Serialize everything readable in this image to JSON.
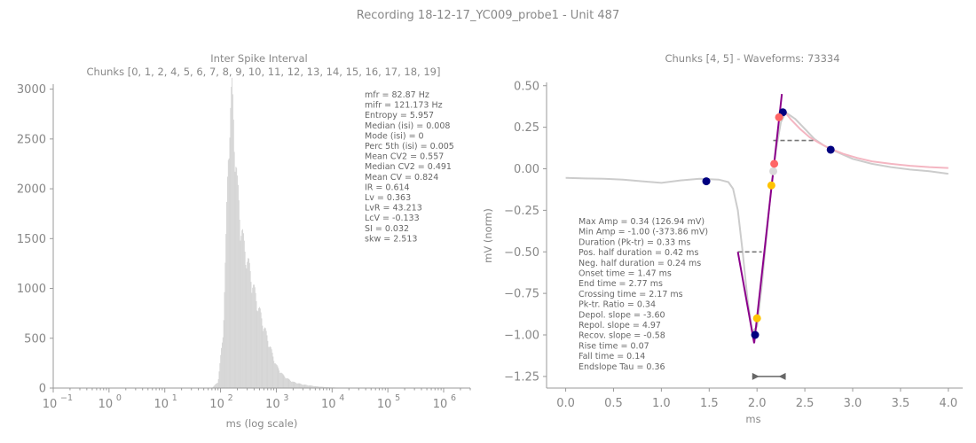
{
  "suptitle": "Recording 18-12-17_YC009_probe1 - Unit 487",
  "chart_data": [
    {
      "type": "bar",
      "title": "Inter Spike Interval",
      "subtitle": "Chunks [0, 1, 2, 4, 5, 6, 7, 8, 9, 10, 11, 12, 13, 14, 15, 16, 17, 18, 19]",
      "xlabel": "ms (log scale)",
      "ylabel": "",
      "xscale": "log",
      "xlim": [
        0.1,
        3000000
      ],
      "ylim": [
        0,
        3050
      ],
      "xticks": [
        "10",
        "10",
        "10",
        "10",
        "10",
        "10",
        "10",
        "10"
      ],
      "xtick_exponents": [
        "−1",
        "0",
        "1",
        "2",
        "3",
        "4",
        "5",
        "6"
      ],
      "yticks": [
        "0",
        "500",
        "1000",
        "1500",
        "2000",
        "2500",
        "3000"
      ],
      "ytick_values": [
        0,
        500,
        1000,
        1500,
        2000,
        2500,
        3000
      ],
      "bar_color": "#d3d3d3",
      "histogram_profile": {
        "x_ms": [
          70,
          90,
          110,
          125,
          140,
          150,
          160,
          170,
          180,
          200,
          230,
          260,
          300,
          350,
          400,
          500,
          600,
          700,
          850,
          1000,
          1300,
          1600,
          2000,
          3000,
          5000,
          8000,
          20000
        ],
        "counts": [
          0,
          60,
          500,
          1400,
          2450,
          2700,
          2850,
          2650,
          2400,
          1950,
          1600,
          1400,
          1250,
          1100,
          950,
          750,
          600,
          480,
          330,
          220,
          130,
          90,
          60,
          35,
          18,
          8,
          0
        ]
      },
      "stats": [
        "mfr = 82.87 Hz",
        "mifr = 121.173 Hz",
        "Entropy = 5.957",
        "Median (isi) = 0.008",
        "Mode (isi) = 0",
        "Perc 5th (isi) = 0.005",
        "Mean CV2 = 0.557",
        "Median CV2 = 0.491",
        "Mean CV = 0.824",
        "IR = 0.614",
        "Lv = 0.363",
        "LvR = 43.213",
        "LcV = -0.133",
        "SI = 0.032",
        "skw = 2.513"
      ]
    },
    {
      "type": "line",
      "title": "Chunks [4, 5] - Waveforms: 73334",
      "xlabel": "ms",
      "ylabel": "mV (norm)",
      "xlim": [
        -0.2,
        4.15
      ],
      "ylim": [
        -1.32,
        0.52
      ],
      "xticks": [
        "0.0",
        "0.5",
        "1.0",
        "1.5",
        "2.0",
        "2.5",
        "3.0",
        "3.5",
        "4.0"
      ],
      "xtick_values": [
        0,
        0.5,
        1,
        1.5,
        2,
        2.5,
        3,
        3.5,
        4
      ],
      "yticks": [
        "0.50",
        "0.25",
        "0.00",
        "−0.25",
        "−0.50",
        "−0.75",
        "−1.00",
        "−1.25"
      ],
      "ytick_values": [
        0.5,
        0.25,
        0,
        -0.25,
        -0.5,
        -0.75,
        -1,
        -1.25
      ],
      "series": [
        {
          "color": "#cccccc",
          "x": [
            0,
            0.2,
            0.4,
            0.6,
            0.8,
            1.0,
            1.2,
            1.4,
            1.6,
            1.7,
            1.75,
            1.8,
            1.85,
            1.9,
            1.95,
            2.0,
            2.05,
            2.1,
            2.15,
            2.2,
            2.25,
            2.3,
            2.4,
            2.5,
            2.6,
            2.7,
            2.8,
            3.0,
            3.2,
            3.4,
            3.6,
            3.8,
            4.0
          ],
          "y": [
            -0.055,
            -0.058,
            -0.06,
            -0.065,
            -0.075,
            -0.085,
            -0.07,
            -0.06,
            -0.065,
            -0.08,
            -0.12,
            -0.25,
            -0.5,
            -0.78,
            -0.98,
            -0.95,
            -0.7,
            -0.4,
            -0.1,
            0.12,
            0.28,
            0.34,
            0.3,
            0.24,
            0.18,
            0.14,
            0.11,
            0.06,
            0.03,
            0.01,
            -0.005,
            -0.015,
            -0.03
          ]
        },
        {
          "color": "#f4b6c2",
          "x": [
            2.28,
            2.35,
            2.45,
            2.55,
            2.65,
            2.75,
            2.9,
            3.05,
            3.2,
            3.4,
            3.6,
            3.8,
            4.0
          ],
          "y": [
            0.35,
            0.3,
            0.24,
            0.19,
            0.155,
            0.125,
            0.09,
            0.065,
            0.045,
            0.03,
            0.018,
            0.01,
            0.005
          ]
        }
      ],
      "fit_lines": [
        {
          "color": "#8b008b",
          "x": [
            1.8,
            1.97
          ],
          "y": [
            -0.5,
            -1.05
          ]
        },
        {
          "color": "#8b008b",
          "x": [
            1.97,
            2.26
          ],
          "y": [
            -1.05,
            0.45
          ]
        }
      ],
      "half_lines": [
        {
          "color": "#777777",
          "x": [
            1.8,
            2.05
          ],
          "y": [
            -0.5,
            -0.5
          ]
        },
        {
          "color": "#777777",
          "x": [
            2.17,
            2.6
          ],
          "y": [
            0.17,
            0.17
          ]
        }
      ],
      "points": [
        {
          "x": 1.47,
          "y": -0.075,
          "color": "#000080"
        },
        {
          "x": 2.77,
          "y": 0.115,
          "color": "#000080"
        },
        {
          "x": 1.98,
          "y": -1.0,
          "color": "#000080"
        },
        {
          "x": 2.27,
          "y": 0.34,
          "color": "#000080"
        },
        {
          "x": 2.0,
          "y": -0.9,
          "color": "#ffc300"
        },
        {
          "x": 2.15,
          "y": -0.1,
          "color": "#ffc300"
        },
        {
          "x": 2.17,
          "y": -0.015,
          "color": "#d9d9d9"
        },
        {
          "x": 2.18,
          "y": 0.03,
          "color": "#ff6666"
        },
        {
          "x": 2.23,
          "y": 0.31,
          "color": "#ff6666"
        }
      ],
      "scalebar": {
        "x": [
          1.95,
          2.3
        ],
        "y": -1.25,
        "color": "#666666"
      },
      "features": [
        "Max Amp = 0.34 (126.94 mV)",
        "Min Amp = -1.00 (-373.86 mV)",
        "Duration (Pk-tr) = 0.33 ms",
        "Pos. half duration = 0.42 ms",
        "Neg. half duration = 0.24 ms",
        "Onset time = 1.47 ms",
        "End time = 2.77 ms",
        "Crossing time = 2.17 ms",
        "Pk-tr. Ratio = 0.34",
        "Depol. slope = -3.60",
        "Repol. slope = 4.97",
        "Recov. slope = -0.58",
        "Rise time = 0.07",
        "Fall time = 0.14",
        "Endslope Tau = 0.36"
      ]
    }
  ]
}
